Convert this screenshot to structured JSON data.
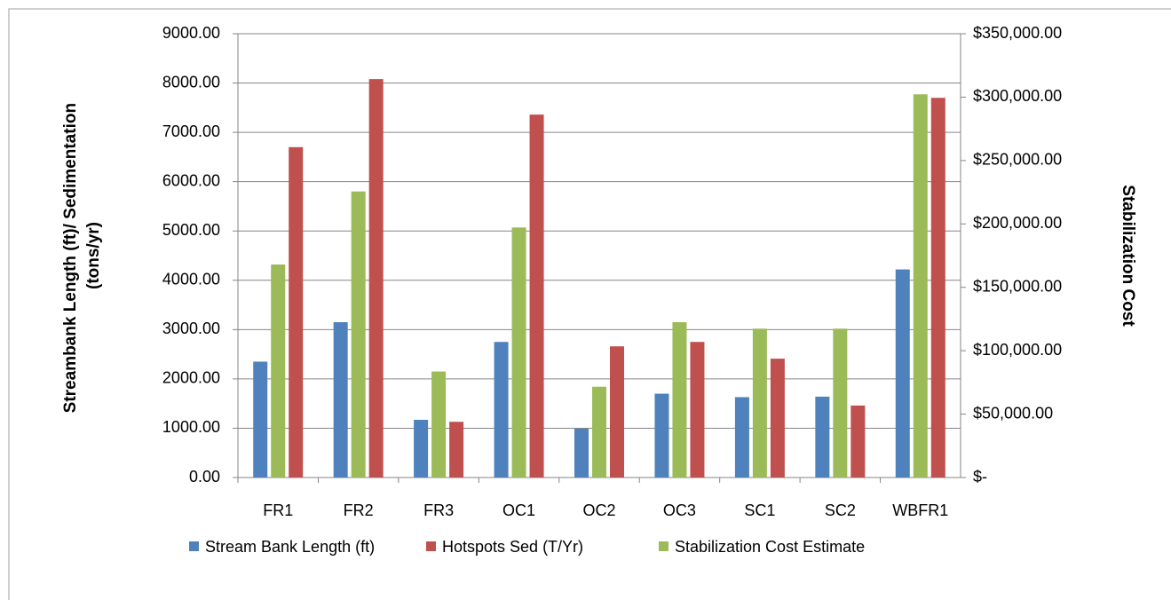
{
  "chart_data": {
    "type": "bar",
    "categories": [
      "FR1",
      "FR2",
      "FR3",
      "OC1",
      "OC2",
      "OC3",
      "SC1",
      "SC2",
      "WBFR1"
    ],
    "y_label": "Streambank Length (ft)/ Sedimentation (tons/yr)",
    "y2_label": "Stabilization Cost",
    "series": [
      {
        "name": "Stream Bank Length (ft)",
        "color": "#4f81bd",
        "values": [
          2350,
          3150,
          1170,
          2750,
          990,
          1700,
          1630,
          1640,
          4220
        ]
      },
      {
        "name": "Hotspots Sed (T/Yr)",
        "color": "#c0504d",
        "values": [
          6700,
          8080,
          1130,
          7360,
          2660,
          2750,
          2410,
          1460,
          7700
        ]
      },
      {
        "name": "Stabilization Cost Estimate",
        "color": "#9bbb59",
        "axis": "y2",
        "values": [
          168000,
          225600,
          83600,
          197200,
          71600,
          122500,
          117400,
          117400,
          302200
        ]
      }
    ],
    "ylim": [
      0,
      9000
    ],
    "yticks": [
      {
        "value": 0,
        "label": "0.00"
      },
      {
        "value": 1000,
        "label": "1000.00"
      },
      {
        "value": 2000,
        "label": "2000.00"
      },
      {
        "value": 3000,
        "label": "3000.00"
      },
      {
        "value": 4000,
        "label": "4000.00"
      },
      {
        "value": 5000,
        "label": "5000.00"
      },
      {
        "value": 6000,
        "label": "6000.00"
      },
      {
        "value": 7000,
        "label": "7000.00"
      },
      {
        "value": 8000,
        "label": "8000.00"
      },
      {
        "value": 9000,
        "label": "9000.00"
      }
    ],
    "y2lim": [
      0,
      350000
    ],
    "y2ticks": [
      {
        "value": 0,
        "label": "$-"
      },
      {
        "value": 50000,
        "label": "$50,000.00"
      },
      {
        "value": 100000,
        "label": "$100,000.00"
      },
      {
        "value": 150000,
        "label": "$150,000.00"
      },
      {
        "value": 200000,
        "label": "$200,000.00"
      },
      {
        "value": 250000,
        "label": "$250,000.00"
      },
      {
        "value": 300000,
        "label": "$300,000.00"
      },
      {
        "value": 350000,
        "label": "$350,000.00"
      }
    ],
    "grid": true,
    "legend": "bottom"
  }
}
